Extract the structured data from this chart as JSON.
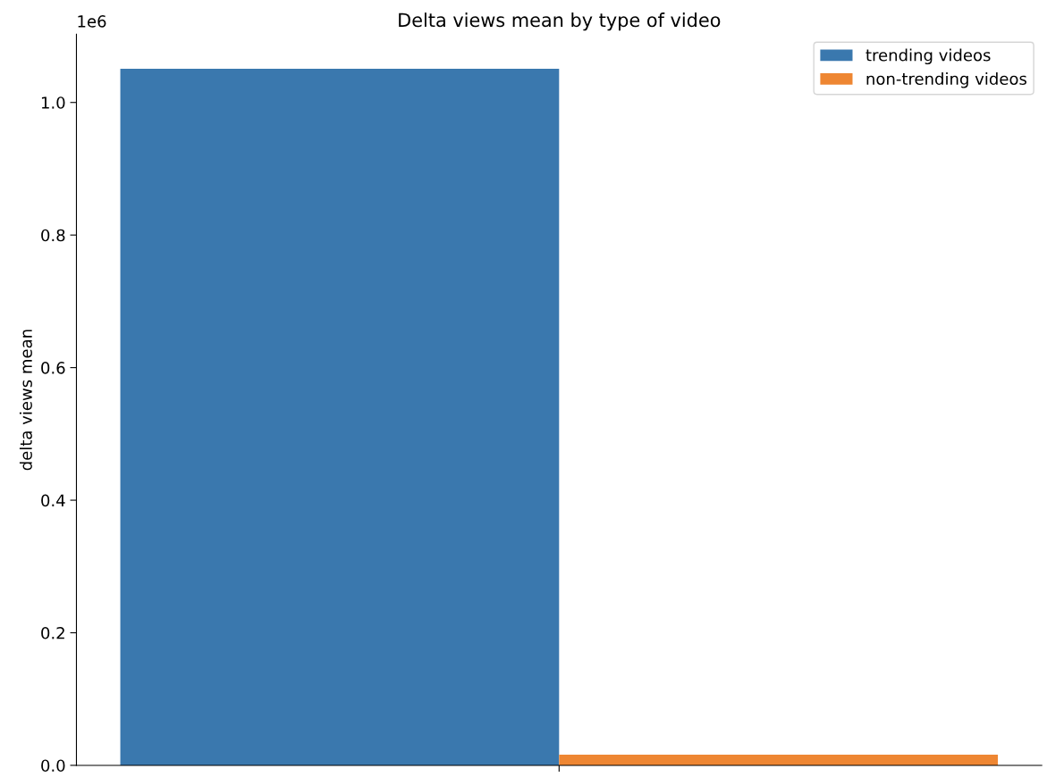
{
  "chart_data": {
    "type": "bar",
    "title": "Delta views mean by type of video",
    "ylabel": "delta views mean",
    "categories": [
      null
    ],
    "series": [
      {
        "name": "trending videos",
        "color": "#3a78ae",
        "values": [
          1.051
        ]
      },
      {
        "name": "non-trending videos",
        "color": "#ee8632",
        "values": [
          0.016
        ]
      }
    ],
    "ylim": [
      0,
      1.103
    ],
    "yticks": [
      {
        "value": 0,
        "label": "0.0"
      },
      0.2,
      0.4,
      0.6,
      0.8,
      {
        "value": 1,
        "label": "1.0"
      }
    ],
    "annotations": [
      "1e6"
    ],
    "legend": "top right",
    "grid": false
  }
}
